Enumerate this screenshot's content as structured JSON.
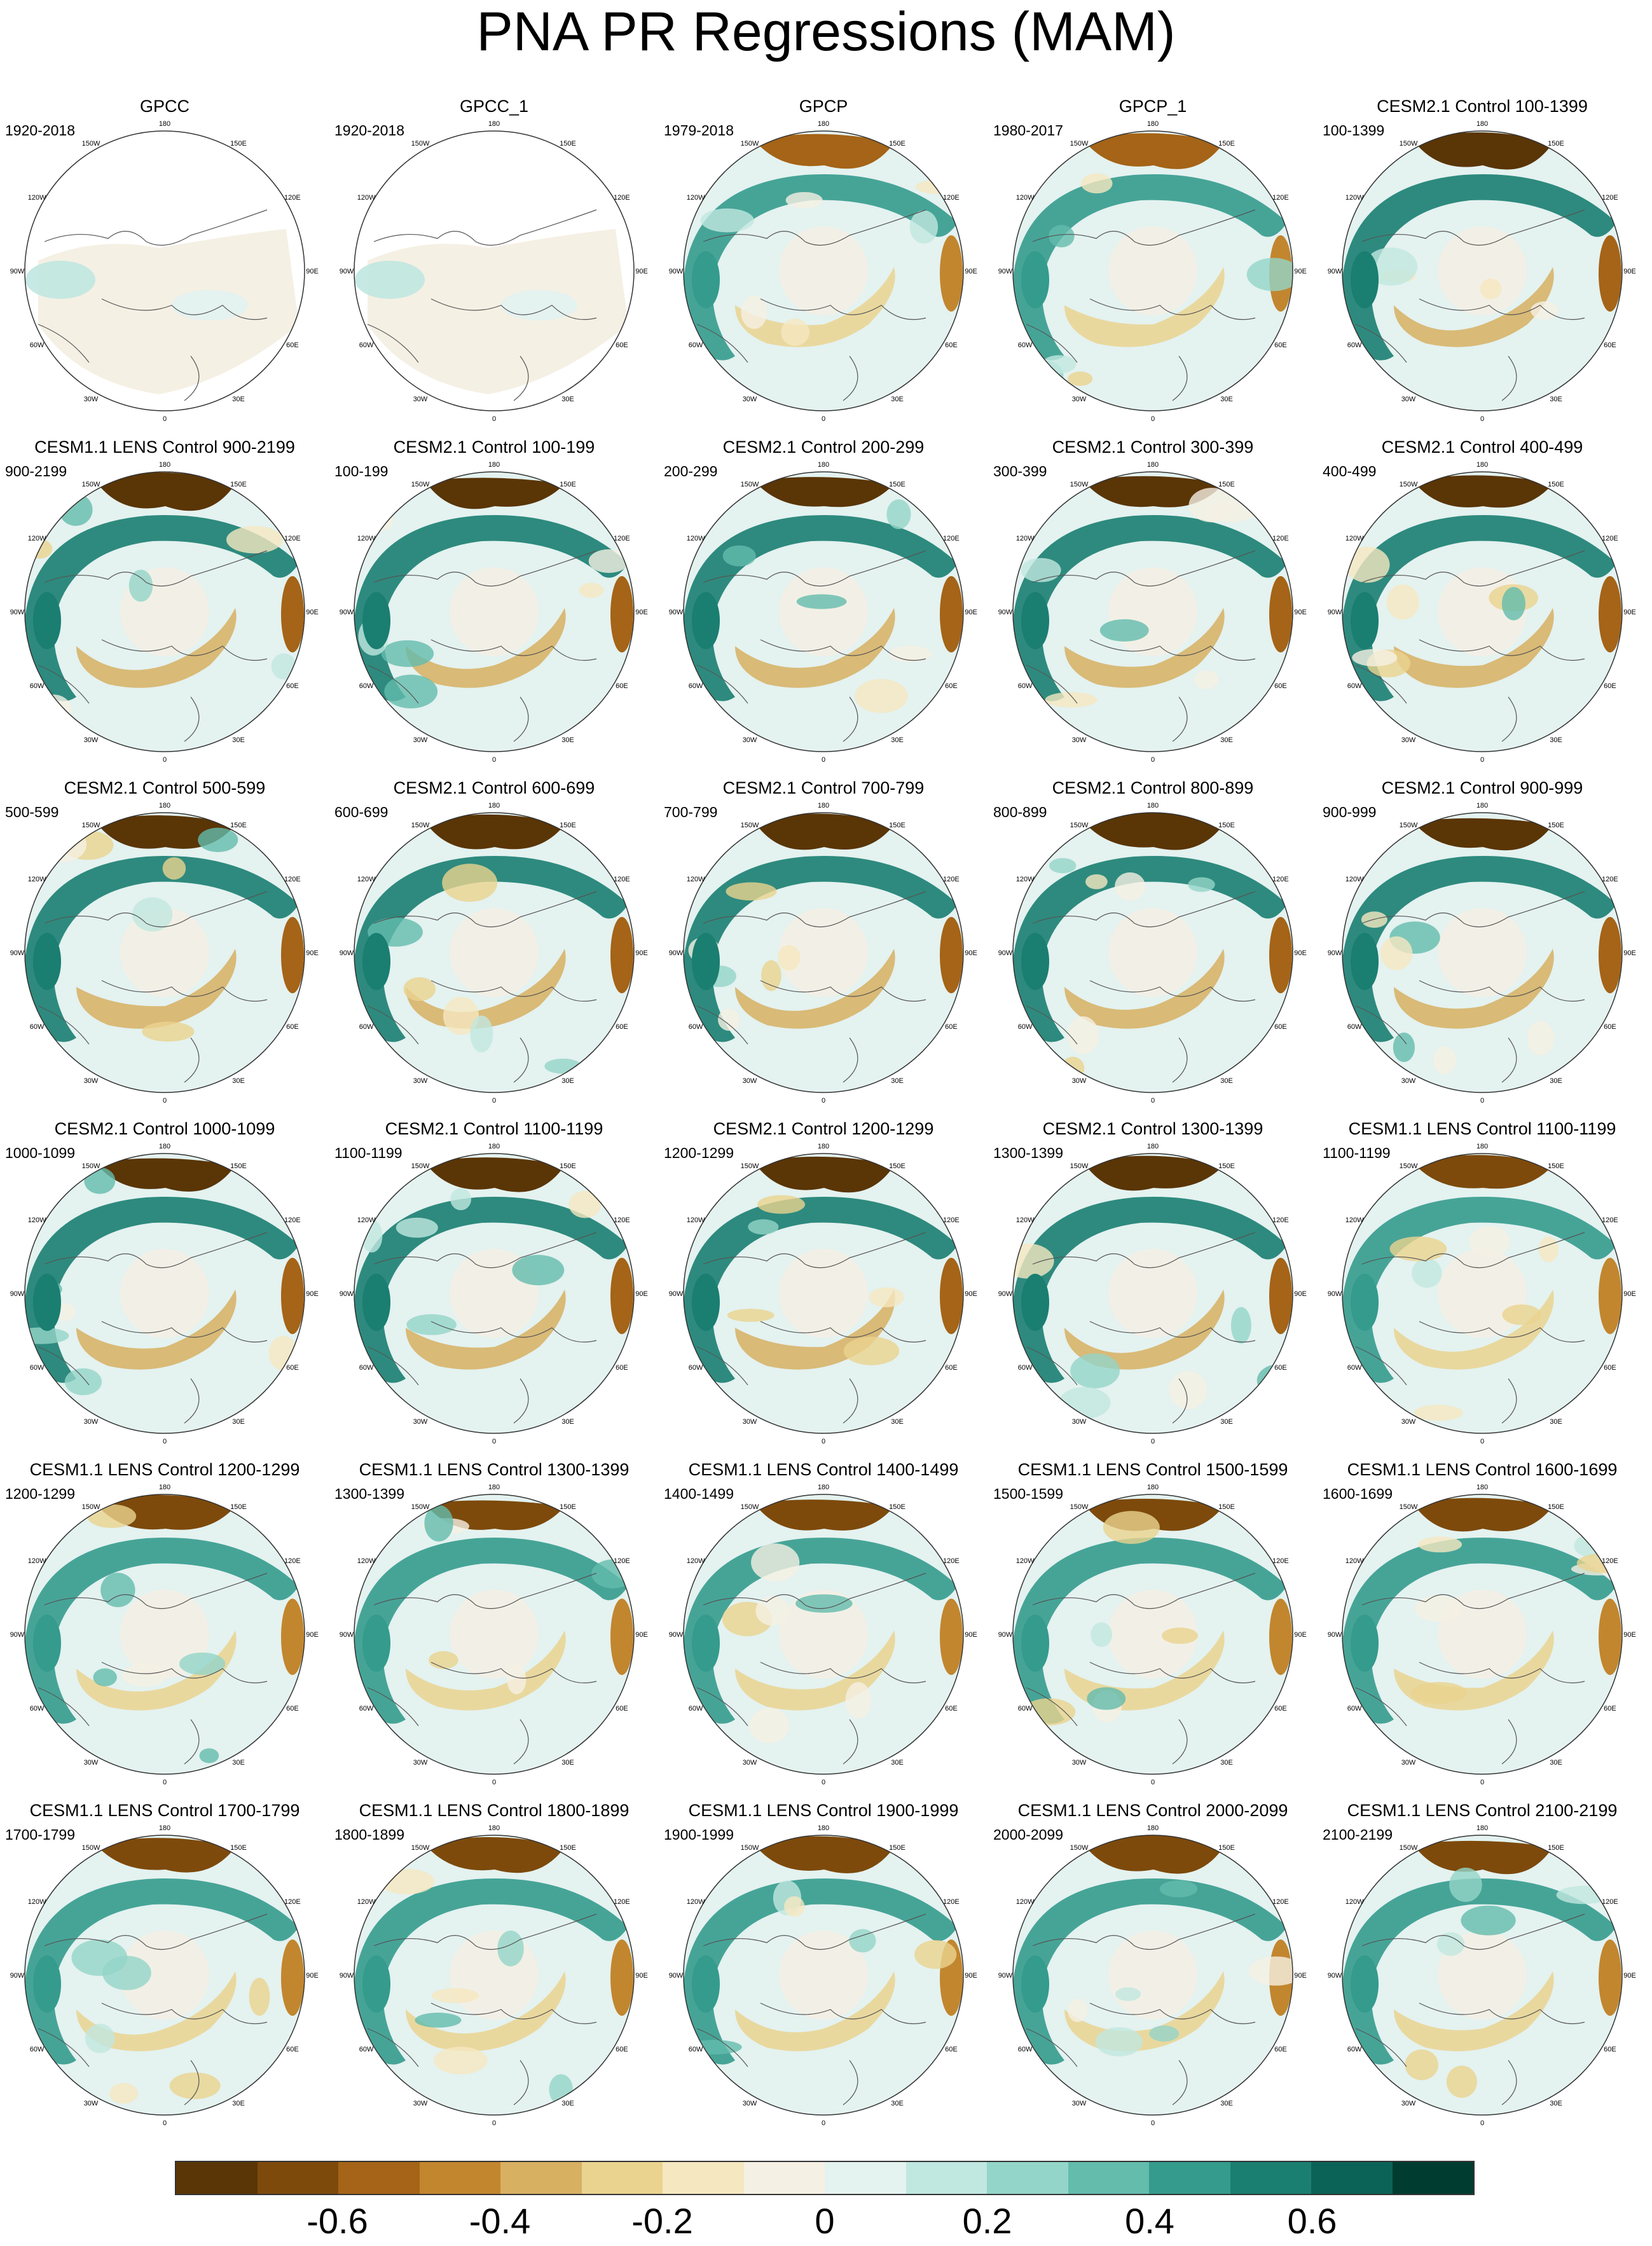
{
  "title": "PNA PR Regressions (MAM)",
  "longitude_labels": [
    "180",
    "150E",
    "120E",
    "90E",
    "60E",
    "30E",
    "0",
    "30W",
    "60W",
    "90W",
    "120W",
    "150W"
  ],
  "colorbar": {
    "colors": [
      "#5a3506",
      "#7d4a0c",
      "#a56417",
      "#c2862e",
      "#d7b062",
      "#ead38f",
      "#f5e7c0",
      "#f5f0e4",
      "#e4f2f0",
      "#c0e7e0",
      "#93d5c8",
      "#63bcac",
      "#349b8d",
      "#1a7e71",
      "#0b6357",
      "#003c30"
    ],
    "tick_labels": [
      "-0.6",
      "-0.4",
      "-0.2",
      "0",
      "0.2",
      "0.4",
      "0.6"
    ],
    "tick_values": [
      -0.6,
      -0.4,
      -0.2,
      0,
      0.2,
      0.4,
      0.6
    ],
    "range": [
      -0.8,
      0.8
    ]
  },
  "chart_data": {
    "type": "heatmap",
    "projection": "north-polar stereographic",
    "grid": "6 rows x 5 columns",
    "panels": [
      {
        "title": "GPCC",
        "period": "1920-2018"
      },
      {
        "title": "GPCC_1",
        "period": "1920-2018"
      },
      {
        "title": "GPCP",
        "period": "1979-2018"
      },
      {
        "title": "GPCP_1",
        "period": "1980-2017"
      },
      {
        "title": "CESM2.1 Control 100-1399",
        "period": "100-1399"
      },
      {
        "title": "CESM1.1 LENS Control 900-2199",
        "period": "900-2199"
      },
      {
        "title": "CESM2.1 Control 100-199",
        "period": "100-199"
      },
      {
        "title": "CESM2.1 Control 200-299",
        "period": "200-299"
      },
      {
        "title": "CESM2.1 Control 300-399",
        "period": "300-399"
      },
      {
        "title": "CESM2.1 Control 400-499",
        "period": "400-499"
      },
      {
        "title": "CESM2.1 Control 500-599",
        "period": "500-599"
      },
      {
        "title": "CESM2.1 Control 600-699",
        "period": "600-699"
      },
      {
        "title": "CESM2.1 Control 700-799",
        "period": "700-799"
      },
      {
        "title": "CESM2.1 Control 800-899",
        "period": "800-899"
      },
      {
        "title": "CESM2.1 Control 900-999",
        "period": "900-999"
      },
      {
        "title": "CESM2.1 Control 1000-1099",
        "period": "1000-1099"
      },
      {
        "title": "CESM2.1 Control 1100-1199",
        "period": "1100-1199"
      },
      {
        "title": "CESM2.1 Control 1200-1299",
        "period": "1200-1299"
      },
      {
        "title": "CESM2.1 Control 1300-1399",
        "period": "1300-1399"
      },
      {
        "title": "CESM1.1 LENS Control 1100-1199",
        "period": "1100-1199"
      },
      {
        "title": "CESM1.1 LENS Control 1200-1299",
        "period": "1200-1299"
      },
      {
        "title": "CESM1.1 LENS Control 1300-1399",
        "period": "1300-1399"
      },
      {
        "title": "CESM1.1 LENS Control 1400-1499",
        "period": "1400-1499"
      },
      {
        "title": "CESM1.1 LENS Control 1500-1599",
        "period": "1500-1599"
      },
      {
        "title": "CESM1.1 LENS Control 1600-1699",
        "period": "1600-1699"
      },
      {
        "title": "CESM1.1 LENS Control 1700-1799",
        "period": "1700-1799"
      },
      {
        "title": "CESM1.1 LENS Control 1800-1899",
        "period": "1800-1899"
      },
      {
        "title": "CESM1.1 LENS Control 1900-1999",
        "period": "1900-1999"
      },
      {
        "title": "CESM1.1 LENS Control 2000-2099",
        "period": "2000-2099"
      },
      {
        "title": "CESM1.1 LENS Control 2100-2199",
        "period": "2100-2199"
      }
    ]
  }
}
